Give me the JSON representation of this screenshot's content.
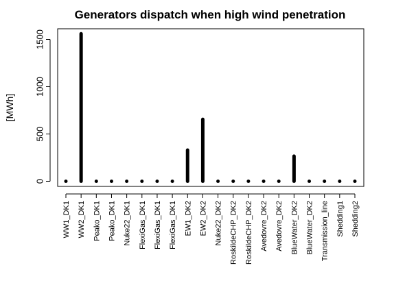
{
  "chart_data": {
    "type": "bar",
    "title": "Generators dispatch when high wind penetration",
    "xlabel": "",
    "ylabel": "[MWh]",
    "ylim": [
      0,
      1650
    ],
    "yticks": [
      0,
      500,
      1000,
      1500
    ],
    "ytick_labels": [
      "0",
      "500",
      "1000",
      "1500"
    ],
    "bar_color": "#000000",
    "categories": [
      "WW1_DK1",
      "WW2_DK1",
      "Peako_DK1",
      "Peako_DK1",
      "Nuke22_DK1",
      "FlexiGas_DK1",
      "FlexiGas_DK1",
      "FlexiGas_DK1",
      "EW1_DK2",
      "EW2_DK2",
      "Nuke22_DK2",
      "RoskildeCHP_DK2",
      "RoskildeCHP_DK2",
      "Avedovre_DK2",
      "Avedovre_DK2",
      "BlueWater_DK2",
      "BlueWater_DK2",
      "Transmission_line",
      "Shedding1",
      "Shedding2"
    ],
    "values": [
      0,
      1560,
      0,
      0,
      0,
      0,
      0,
      0,
      330,
      655,
      0,
      0,
      0,
      0,
      0,
      265,
      0,
      0,
      0,
      0
    ]
  }
}
